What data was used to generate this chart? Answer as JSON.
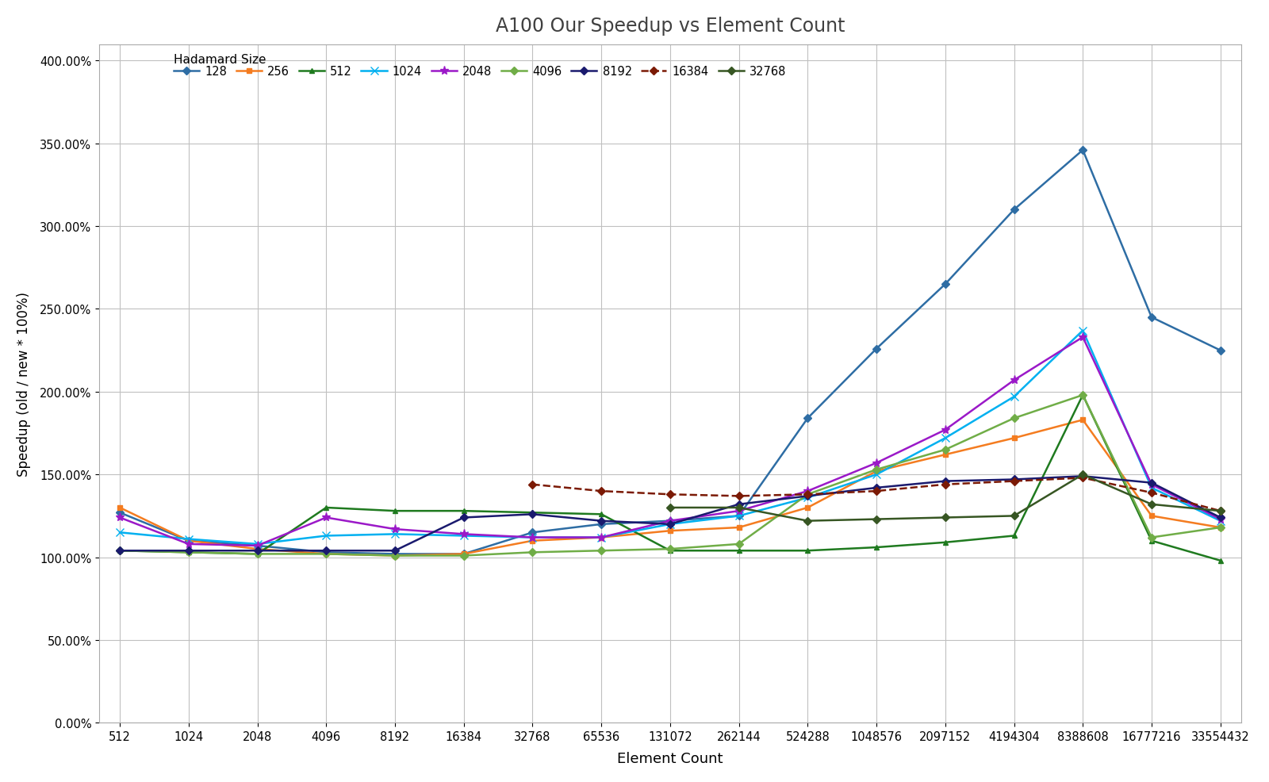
{
  "title": "A100 Our Speedup vs Element Count",
  "xlabel": "Element Count",
  "ylabel": "Speedup (old / new * 100%)",
  "x_labels": [
    "512",
    "1024",
    "2048",
    "4096",
    "8192",
    "16384",
    "32768",
    "65536",
    "131072",
    "262144",
    "524288",
    "1048576",
    "2097152",
    "4194304",
    "8388608",
    "16777216",
    "33554432"
  ],
  "x_values": [
    512,
    1024,
    2048,
    4096,
    8192,
    16384,
    32768,
    65536,
    131072,
    262144,
    524288,
    1048576,
    2097152,
    4194304,
    8388608,
    16777216,
    33554432
  ],
  "series": [
    {
      "label": "128",
      "color": "#2e6da4",
      "marker": "D",
      "linestyle": "-",
      "linewidth": 1.8,
      "markersize": 5,
      "values": [
        1.27,
        1.1,
        1.07,
        1.03,
        1.02,
        1.02,
        1.15,
        1.2,
        1.22,
        1.25,
        1.84,
        2.26,
        2.65,
        3.1,
        3.46,
        2.45,
        2.25
      ]
    },
    {
      "label": "256",
      "color": "#f47c20",
      "marker": "s",
      "linestyle": "-",
      "linewidth": 1.8,
      "markersize": 5,
      "values": [
        1.3,
        1.1,
        1.05,
        1.02,
        1.01,
        1.02,
        1.1,
        1.12,
        1.16,
        1.18,
        1.3,
        1.52,
        1.62,
        1.72,
        1.83,
        1.25,
        1.18
      ]
    },
    {
      "label": "512",
      "color": "#1f7a1f",
      "marker": "^",
      "linestyle": "-",
      "linewidth": 1.8,
      "markersize": 5,
      "values": [
        1.04,
        1.03,
        1.02,
        1.3,
        1.28,
        1.28,
        1.27,
        1.26,
        1.04,
        1.04,
        1.04,
        1.06,
        1.09,
        1.13,
        1.98,
        1.1,
        0.98
      ]
    },
    {
      "label": "1024",
      "color": "#00b0f0",
      "marker": "x",
      "linestyle": "-",
      "linewidth": 1.8,
      "markersize": 7,
      "values": [
        1.15,
        1.11,
        1.08,
        1.13,
        1.14,
        1.13,
        1.12,
        1.12,
        1.2,
        1.25,
        1.36,
        1.5,
        1.72,
        1.97,
        2.37,
        1.42,
        1.22
      ]
    },
    {
      "label": "2048",
      "color": "#9b19c8",
      "marker": "*",
      "linestyle": "-",
      "linewidth": 1.8,
      "markersize": 8,
      "values": [
        1.24,
        1.08,
        1.07,
        1.24,
        1.17,
        1.14,
        1.12,
        1.12,
        1.22,
        1.28,
        1.4,
        1.57,
        1.77,
        2.07,
        2.33,
        1.44,
        1.23
      ]
    },
    {
      "label": "4096",
      "color": "#70ad47",
      "marker": "D",
      "linestyle": "-",
      "linewidth": 1.8,
      "markersize": 5,
      "values": [
        1.04,
        1.03,
        1.02,
        1.02,
        1.01,
        1.01,
        1.03,
        1.04,
        1.05,
        1.08,
        1.38,
        1.53,
        1.65,
        1.84,
        1.98,
        1.12,
        1.18
      ]
    },
    {
      "label": "8192",
      "color": "#1a1a6e",
      "marker": "D",
      "linestyle": "-",
      "linewidth": 1.8,
      "markersize": 5,
      "values": [
        1.04,
        1.04,
        1.04,
        1.04,
        1.04,
        1.24,
        1.26,
        1.22,
        1.2,
        1.32,
        1.37,
        1.42,
        1.46,
        1.47,
        1.49,
        1.45,
        1.24
      ]
    },
    {
      "label": "16384",
      "color": "#7b1a05",
      "marker": "D",
      "linestyle": "--",
      "linewidth": 1.8,
      "markersize": 5,
      "values": [
        null,
        null,
        null,
        null,
        null,
        null,
        1.44,
        1.4,
        1.38,
        1.37,
        1.38,
        1.4,
        1.44,
        1.46,
        1.48,
        1.39,
        1.28
      ]
    },
    {
      "label": "32768",
      "color": "#375623",
      "marker": "D",
      "linestyle": "-",
      "linewidth": 1.8,
      "markersize": 5,
      "values": [
        null,
        null,
        null,
        null,
        null,
        null,
        null,
        null,
        1.3,
        1.3,
        1.22,
        1.23,
        1.24,
        1.25,
        1.5,
        1.32,
        1.28
      ]
    }
  ],
  "ylim": [
    0.0,
    4.1
  ],
  "yticks": [
    0.0,
    0.5,
    1.0,
    1.5,
    2.0,
    2.5,
    3.0,
    3.5,
    4.0
  ],
  "ytick_labels": [
    "0.00%",
    "50.00%",
    "100.00%",
    "150.00%",
    "200.00%",
    "250.00%",
    "300.00%",
    "350.00%",
    "400.00%"
  ],
  "background_color": "#ffffff",
  "grid_color": "#c0c0c0",
  "legend_label": "Hadamard Size"
}
